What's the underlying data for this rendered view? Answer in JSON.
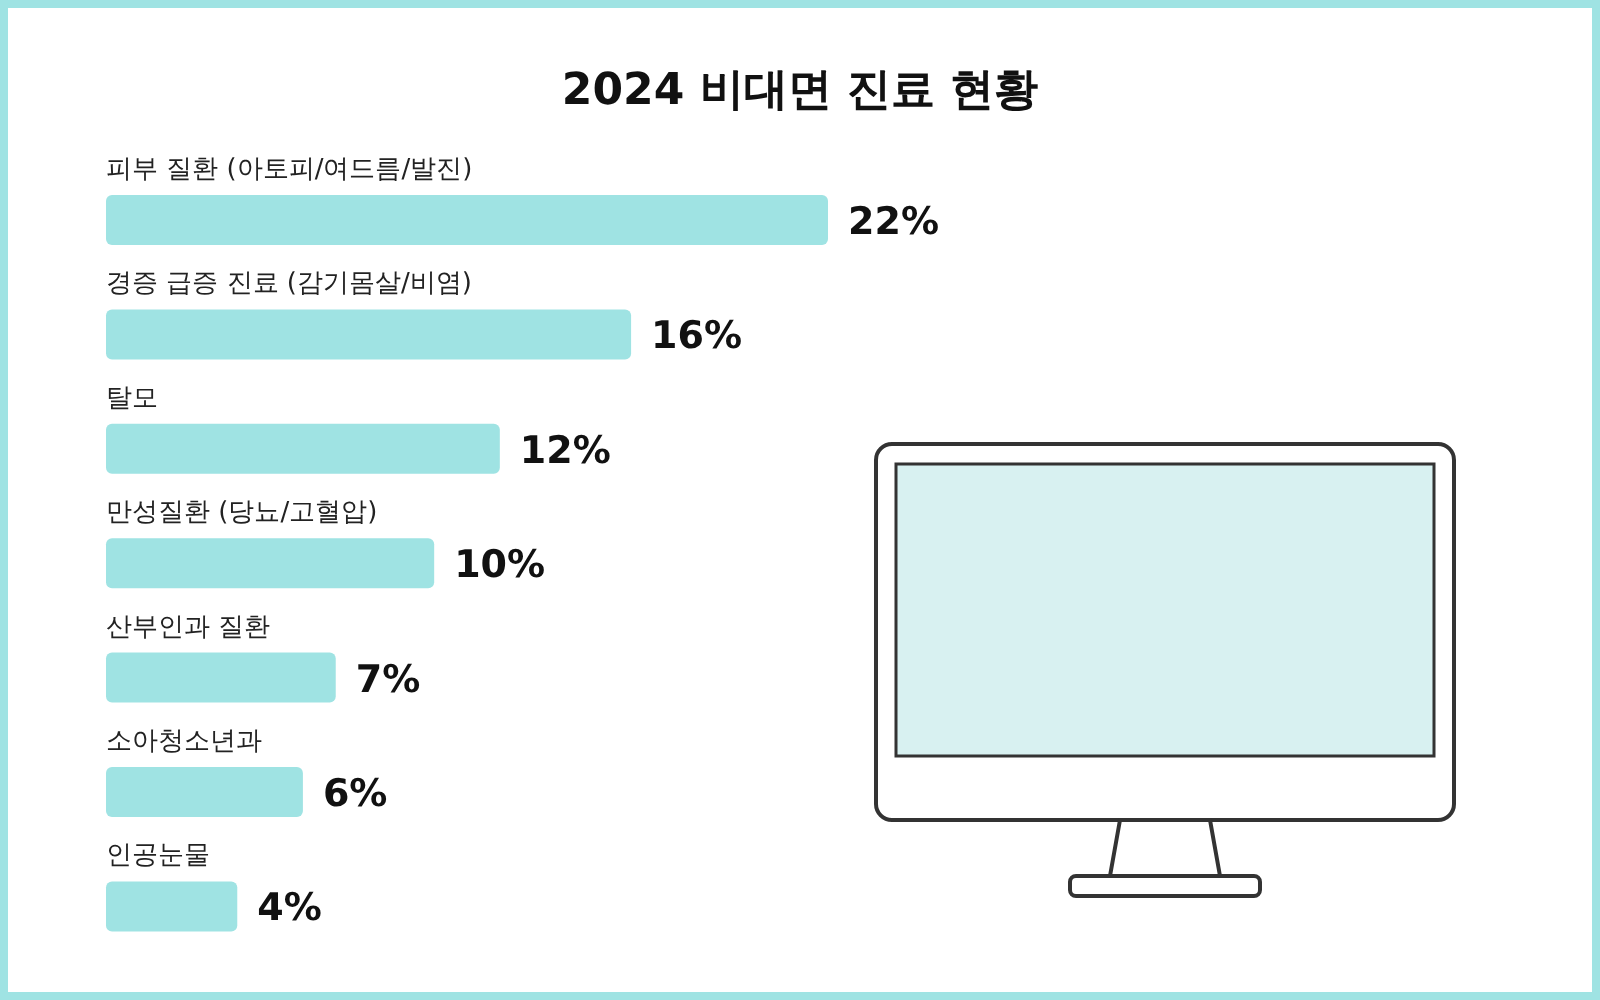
{
  "chart_data": {
    "type": "bar",
    "orientation": "horizontal",
    "title": "2024 비대면 진료 현황",
    "categories": [
      "피부 질환 (아토피/여드름/발진)",
      "경증 급증 진료 (감기몸살/비염)",
      "탈모",
      "만성질환 (당뇨/고혈압)",
      "산부인과 질환",
      "소아청소년과",
      "인공눈물"
    ],
    "values": [
      22,
      16,
      12,
      10,
      7,
      6,
      4
    ],
    "color": "#9fe3e3",
    "value_labels": [
      "22%",
      "16%",
      "12%",
      "10%",
      "7%",
      "6%",
      "4%"
    ]
  }
}
